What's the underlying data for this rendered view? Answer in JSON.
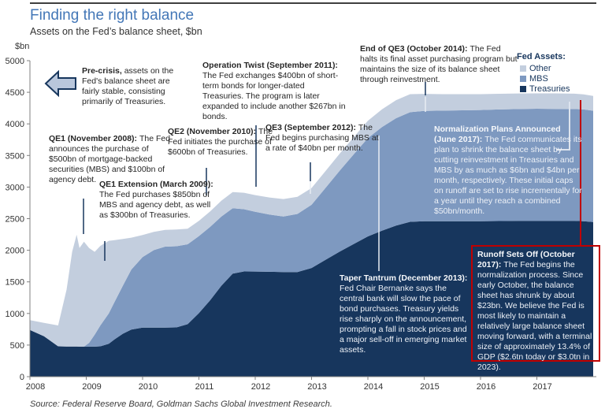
{
  "page": {
    "title": "Finding the right balance",
    "subtitle": "Assets on the Fed’s balance sheet, $bn",
    "source": "Source: Federal Reserve Board, Goldman Sachs Global Investment Research."
  },
  "legend": {
    "header": "Fed Assets:",
    "items": [
      {
        "label": "Other",
        "color": "#c3cede"
      },
      {
        "label": "MBS",
        "color": "#7e99c0"
      },
      {
        "label": "Treasuries",
        "color": "#17365d"
      }
    ]
  },
  "annotations": {
    "pre_crisis": {
      "title": "Pre-crisis, ",
      "body": "assets on the Fed's balance sheet are fairly stable, consisting primarily of Treasuries."
    },
    "qe1": {
      "title": "QE1 (November 2008): ",
      "body": "The Fed announces the purchase of $500bn of mortgage-backed securities (MBS) and $100bn of agency debt."
    },
    "qe1_ext": {
      "title": "QE1 Extension (March 2009): ",
      "body": "The Fed purchases $850bn of MBS and agency debt, as well as $300bn of Treasuries."
    },
    "qe2": {
      "title": "QE2 (November 2010): ",
      "body": "The Fed initiates the purchase of $600bn of Treasuries."
    },
    "op_twist": {
      "title": "Operation Twist (September 2011): ",
      "body": "The Fed exchanges $400bn of short-term bonds for longer-dated Treasuries. The program is later expanded to include another $267bn in bonds."
    },
    "qe3": {
      "title": "QE3 (September 2012): ",
      "body": "The Fed begins purchasing MBS at a rate of $40bn per month."
    },
    "end_qe3": {
      "title": "End of QE3 (October 2014): ",
      "body": "The Fed halts its final asset purchasing program but maintains the size of its balance sheet through reinvestment."
    },
    "normalization": {
      "title": "Normalization Plans Announced (June 2017): ",
      "body": "The Fed communicates its plan to shrink the balance sheet by cutting reinvestment in Treasuries and MBS by as much as $6bn and $4bn per month, respectively. These initial caps on runoff are set to rise incrementally for a year until they reach a combined $50bn/month."
    },
    "taper": {
      "title": "Taper Tantrum (December 2013): ",
      "body": "Fed Chair Bernanke says the central bank will slow the pace of bond purchases. Treasury yields rise sharply on the announcement, prompting a fall in stock prices and a major sell-off in emerging market assets."
    },
    "runoff": {
      "title": "Runoff Sets Off (October 2017): ",
      "body": "The Fed begins the normalization process. Since early October, the balance sheet has shrunk by about $23bn. We believe the Fed is most likely to maintain a relatively large balance sheet moving forward, with a terminal size of approximately 13.4% of GDP ($2.6tn today or $3.0tn in 2023)."
    }
  },
  "chart_data": {
    "type": "area",
    "title": "Finding the right balance",
    "subtitle": "Assets on the Fed's balance sheet, $bn",
    "xlabel": "",
    "ylabel": "$bn",
    "ylim": [
      0,
      5000
    ],
    "xlim": [
      2008,
      2018
    ],
    "grid": false,
    "legend_position": "top-right",
    "y_ticks": [
      0,
      500,
      1000,
      1500,
      2000,
      2500,
      3000,
      3500,
      4000,
      4500,
      5000
    ],
    "x_ticks": [
      2008,
      2009,
      2010,
      2011,
      2012,
      2013,
      2014,
      2015,
      2016,
      2017
    ],
    "x": [
      2008.0,
      2008.25,
      2008.5,
      2008.65,
      2008.75,
      2008.83,
      2008.88,
      2008.96,
      2009.05,
      2009.15,
      2009.25,
      2009.4,
      2009.5,
      2009.65,
      2009.8,
      2010.0,
      2010.2,
      2010.4,
      2010.6,
      2010.8,
      2011.0,
      2011.2,
      2011.4,
      2011.6,
      2011.8,
      2012.0,
      2012.25,
      2012.5,
      2012.75,
      2013.0,
      2013.25,
      2013.5,
      2013.75,
      2014.0,
      2014.25,
      2014.5,
      2014.75,
      2015.0,
      2015.33,
      2015.67,
      2016.0,
      2016.33,
      2016.67,
      2017.0,
      2017.33,
      2017.67,
      2017.83,
      2018.0
    ],
    "series": [
      {
        "name": "Treasuries",
        "color": "#17365d",
        "values": [
          740,
          640,
          480,
          477,
          476,
          476,
          475,
          475,
          475,
          475,
          480,
          520,
          590,
          680,
          745,
          776,
          777,
          777,
          779,
          830,
          1005,
          1210,
          1440,
          1630,
          1665,
          1663,
          1660,
          1655,
          1655,
          1720,
          1850,
          1980,
          2100,
          2220,
          2310,
          2390,
          2450,
          2460,
          2460,
          2460,
          2460,
          2463,
          2465,
          2465,
          2465,
          2465,
          2460,
          2448
        ]
      },
      {
        "name": "MBS",
        "color": "#7e99c0",
        "values": [
          0,
          0,
          0,
          0,
          0,
          0,
          0,
          0,
          60,
          190,
          330,
          480,
          590,
          760,
          950,
          1115,
          1225,
          1280,
          1285,
          1265,
          1220,
          1160,
          1095,
          1035,
          985,
          945,
          905,
          880,
          920,
          1000,
          1140,
          1280,
          1420,
          1555,
          1640,
          1700,
          1735,
          1745,
          1750,
          1755,
          1760,
          1765,
          1770,
          1775,
          1772,
          1770,
          1768,
          1760
        ]
      },
      {
        "name": "Other",
        "color": "#c3cede",
        "values": [
          155,
          210,
          330,
          900,
          1500,
          1770,
          1560,
          1660,
          1500,
          1310,
          1260,
          1150,
          980,
          740,
          505,
          350,
          290,
          265,
          265,
          245,
          240,
          245,
          250,
          255,
          260,
          265,
          270,
          275,
          270,
          265,
          265,
          270,
          270,
          275,
          280,
          285,
          285,
          270,
          260,
          255,
          250,
          248,
          246,
          243,
          245,
          243,
          240,
          235
        ]
      }
    ],
    "connectors": [
      {
        "x": 106,
        "y1": 252,
        "y2": 297,
        "color": "#17365d",
        "w": 1.5
      },
      {
        "x": 133,
        "y1": 306,
        "y2": 331,
        "color": "#17365d",
        "w": 1.5
      },
      {
        "x": 262,
        "y1": 213,
        "y2": 248,
        "color": "#17365d",
        "w": 1.5
      },
      {
        "x": 325,
        "y1": 159,
        "y2": 237,
        "color": "#17365d",
        "w": 1.5
      },
      {
        "x": 394,
        "y1": 206,
        "y2": 230,
        "color": "#17365d",
        "w": 1.5
      },
      {
        "x": 394,
        "y1": 230,
        "y2": 246,
        "color": "#e8edf4",
        "w": 1.5
      },
      {
        "x": 540,
        "y1": 104,
        "y2": 121,
        "color": "#17365d",
        "w": 1.5
      },
      {
        "x": 540,
        "y1": 123,
        "y2": 142,
        "color": "#e8edf4",
        "w": 1.5
      },
      {
        "x": 481,
        "y1": 172,
        "y2": 344,
        "color": "#e8edf4",
        "w": 1.5
      },
      {
        "x": 737,
        "y1": 127,
        "y2": 311,
        "color": "#c00000",
        "w": 2
      }
    ],
    "bracket": {
      "points": [
        [
          706,
          190
        ],
        [
          723,
          190
        ],
        [
          723,
          129
        ]
      ],
      "color": "#dde4ee",
      "w": 2
    },
    "accent_red": "#c00000",
    "axis_color": "#808080",
    "tick_label_color": "#333333"
  }
}
